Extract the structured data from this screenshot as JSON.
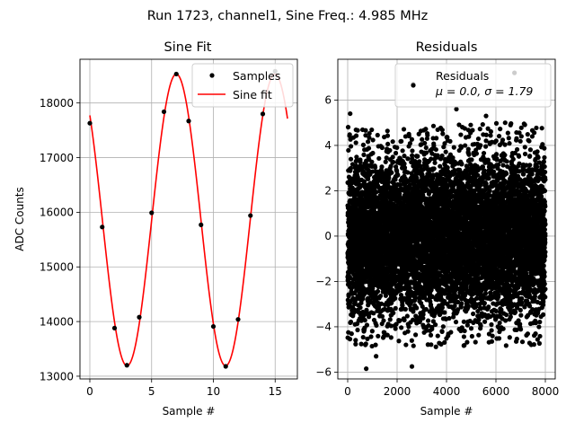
{
  "suptitle": "Run 1723, channel1, Sine Freq.: 4.985 MHz",
  "chart_data": [
    {
      "type": "scatter+line",
      "title": "Sine Fit",
      "xlabel": "Sample #",
      "ylabel": "ADC Counts",
      "xlim": [
        -0.8,
        16.8
      ],
      "ylim": [
        12950,
        18800
      ],
      "grid": true,
      "legend_position": "top-right",
      "xticks": [
        0,
        5,
        10,
        15
      ],
      "yticks": [
        13000,
        14000,
        15000,
        16000,
        17000,
        18000
      ],
      "xtick_labels": [
        "0",
        "5",
        "10",
        "15"
      ],
      "ytick_labels": [
        "13000",
        "14000",
        "15000",
        "16000",
        "17000",
        "18000"
      ],
      "series": [
        {
          "name": "Samples",
          "kind": "scatter",
          "color": "#000000",
          "x": [
            0,
            1,
            2,
            3,
            4,
            5,
            6,
            7,
            8,
            9,
            10,
            11,
            12,
            13,
            14,
            15
          ],
          "y": [
            17630,
            15730,
            13880,
            13200,
            14080,
            15990,
            17840,
            18530,
            17670,
            15770,
            13910,
            13180,
            14040,
            15940,
            17800,
            18580
          ]
        },
        {
          "name": "Sine fit",
          "kind": "line",
          "color": "#ff0000",
          "model": {
            "offset": 15860,
            "amplitude": 2670,
            "period_samples": 7.98,
            "peak_at_sample": 7.0
          },
          "x_range": [
            0,
            16
          ]
        }
      ]
    },
    {
      "type": "scatter",
      "title": "Residuals",
      "xlabel": "Sample #",
      "ylabel": "",
      "xlim": [
        -400,
        8400
      ],
      "ylim": [
        -6.3,
        7.8
      ],
      "grid": true,
      "legend_position": "top-right",
      "xticks": [
        0,
        2000,
        4000,
        6000,
        8000
      ],
      "yticks": [
        -6,
        -4,
        -2,
        0,
        2,
        4,
        6
      ],
      "xtick_labels": [
        "0",
        "2000",
        "4000",
        "6000",
        "8000"
      ],
      "ytick_labels": [
        "−6",
        "−4",
        "−2",
        "0",
        "2",
        "4",
        "6"
      ],
      "series": [
        {
          "name": "Residuals",
          "legend_stats": "μ = 0.0, σ = 1.79",
          "kind": "scatter",
          "color": "#000000",
          "n_points": 8000,
          "distribution": {
            "mean": 0.0,
            "std": 1.79
          },
          "x_range": [
            0,
            7999
          ],
          "notable_points": [
            {
              "x": 6750,
              "y": 7.2
            },
            {
              "x": 2650,
              "y": 6.7
            },
            {
              "x": 100,
              "y": 5.4
            },
            {
              "x": 5600,
              "y": 5.3
            },
            {
              "x": 4400,
              "y": 5.6
            },
            {
              "x": 750,
              "y": -5.85
            },
            {
              "x": 2600,
              "y": -5.75
            },
            {
              "x": 1150,
              "y": -5.3
            }
          ]
        }
      ]
    }
  ]
}
